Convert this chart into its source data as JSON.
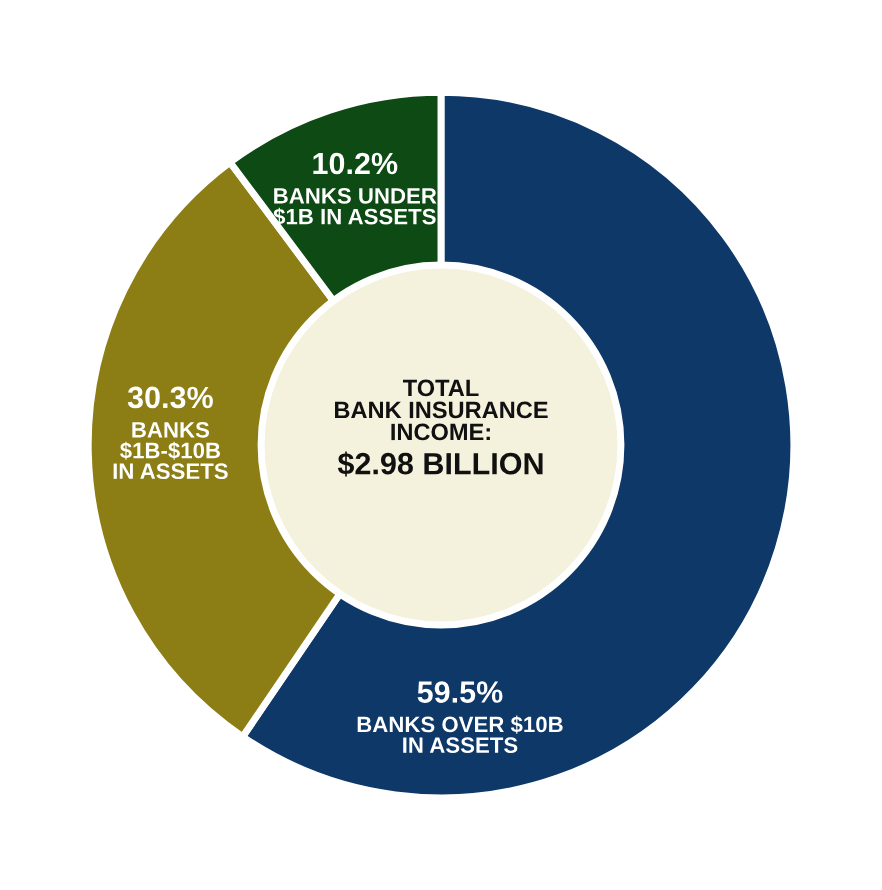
{
  "chart_data": {
    "type": "donut",
    "categories": [
      "BANKS OVER $10B\nIN ASSETS",
      "BANKS\n$1B-$10B\nIN ASSETS",
      "BANKS UNDER\n$1B IN ASSETS"
    ],
    "values": [
      59.5,
      30.3,
      10.2
    ],
    "value_labels": [
      "59.5%",
      "30.3%",
      "10.2%"
    ],
    "colors": [
      "#0d3868",
      "#8c7e14",
      "#0d4a14"
    ],
    "annotations": [
      "TOTAL\nBANK INSURANCE\nINCOME:",
      "$2.98 BILLION"
    ],
    "legend": false
  }
}
